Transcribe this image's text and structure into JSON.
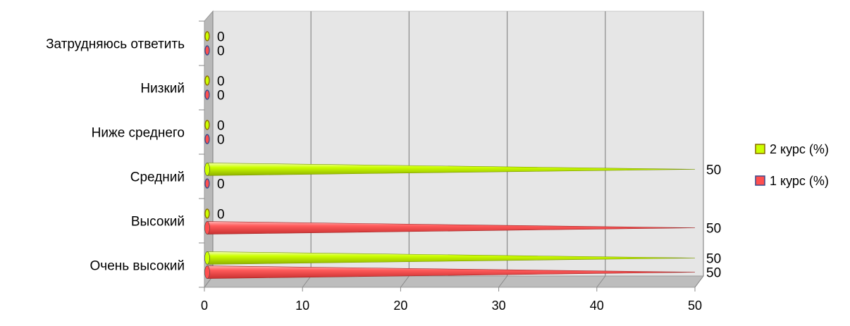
{
  "chart_data": {
    "type": "bar",
    "orientation": "horizontal",
    "style": "3d-cone",
    "categories": [
      "Очень высокий",
      "Высокий",
      "Средний",
      "Ниже среднего",
      "Низкий",
      "Затрудняюсь ответить"
    ],
    "series": [
      {
        "name": "1 курс (%)",
        "color": "#ff4f4f",
        "values": [
          50,
          50,
          0,
          0,
          0,
          0
        ]
      },
      {
        "name": "2 курс (%)",
        "color": "#ccff00",
        "values": [
          50,
          0,
          50,
          0,
          0,
          0
        ]
      }
    ],
    "legend_order": [
      "2 курс (%)",
      "1 курс (%)"
    ],
    "legend_position": "right",
    "xlim": [
      0,
      50
    ],
    "x_ticks": [
      0,
      10,
      20,
      30,
      40,
      50
    ],
    "x_tick_labels": [
      "0",
      "10",
      "20",
      "30",
      "40",
      "50"
    ],
    "title": "",
    "xlabel": "",
    "ylabel": "",
    "grid": true,
    "data_labels": true,
    "colors": {
      "wall": "#e6e6e6",
      "wall_side": "#b8b8b8",
      "floor": "#bdbdbd",
      "grid": "#8a8a8a",
      "text": "#000000"
    }
  }
}
